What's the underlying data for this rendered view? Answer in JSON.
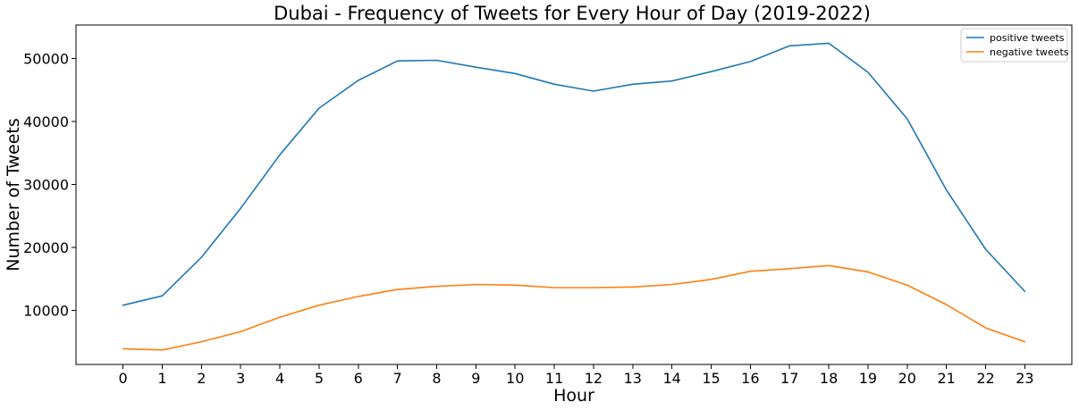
{
  "chart_data": {
    "type": "line",
    "title": "Dubai - Frequency of Tweets for Every Hour of Day (2019-2022)",
    "xlabel": "Hour",
    "ylabel": "Number of Tweets",
    "x": [
      0,
      1,
      2,
      3,
      4,
      5,
      6,
      7,
      8,
      9,
      10,
      11,
      12,
      13,
      14,
      15,
      16,
      17,
      18,
      19,
      20,
      21,
      22,
      23
    ],
    "xlim": [
      -1.2,
      24.2
    ],
    "ylim": [
      1400,
      55300
    ],
    "yticks": [
      10000,
      20000,
      30000,
      40000,
      50000
    ],
    "grid": false,
    "legend_position": "top-right",
    "series": [
      {
        "name": "positive tweets",
        "color": "#1f77b4",
        "values": [
          10800,
          12300,
          18400,
          26200,
          34700,
          42100,
          46500,
          49600,
          49700,
          48600,
          47600,
          45900,
          44800,
          45900,
          46400,
          47900,
          49500,
          52000,
          52400,
          47800,
          40400,
          29100,
          19700,
          13000
        ]
      },
      {
        "name": "negative tweets",
        "color": "#ff7f0e",
        "values": [
          3900,
          3700,
          5000,
          6600,
          8900,
          10800,
          12200,
          13300,
          13800,
          14100,
          14000,
          13600,
          13600,
          13700,
          14100,
          14900,
          16200,
          16600,
          17100,
          16100,
          14000,
          10900,
          7200,
          5000
        ]
      }
    ]
  }
}
